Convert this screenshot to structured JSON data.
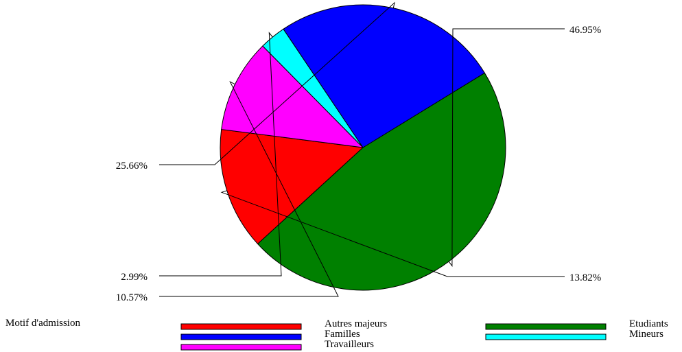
{
  "chart_data": {
    "type": "pie",
    "start_angle_deg": -31.5,
    "direction": "clockwise",
    "slices": [
      {
        "label": "Etudiants",
        "value": 46.95,
        "display": "46.95%",
        "color": "#008000"
      },
      {
        "label": "Autres majeurs",
        "value": 13.82,
        "display": "13.82%",
        "color": "#ff0000"
      },
      {
        "label": "Travailleurs",
        "value": 10.57,
        "display": "10.57%",
        "color": "#ff00ff"
      },
      {
        "label": "Mineurs",
        "value": 2.99,
        "display": "2.99%",
        "color": "#00ffff"
      },
      {
        "label": "Familles",
        "value": 25.66,
        "display": "25.66%",
        "color": "#0000ff"
      }
    ],
    "legend": {
      "title": "Motif d'admission",
      "placement": "bottom",
      "entries": [
        {
          "label": "Autres majeurs",
          "color": "#ff0000"
        },
        {
          "label": "Etudiants",
          "color": "#008000"
        },
        {
          "label": "Familles",
          "color": "#0000ff"
        },
        {
          "label": "Mineurs",
          "color": "#00ffff"
        },
        {
          "label": "Travailleurs",
          "color": "#ff00ff"
        }
      ]
    }
  }
}
